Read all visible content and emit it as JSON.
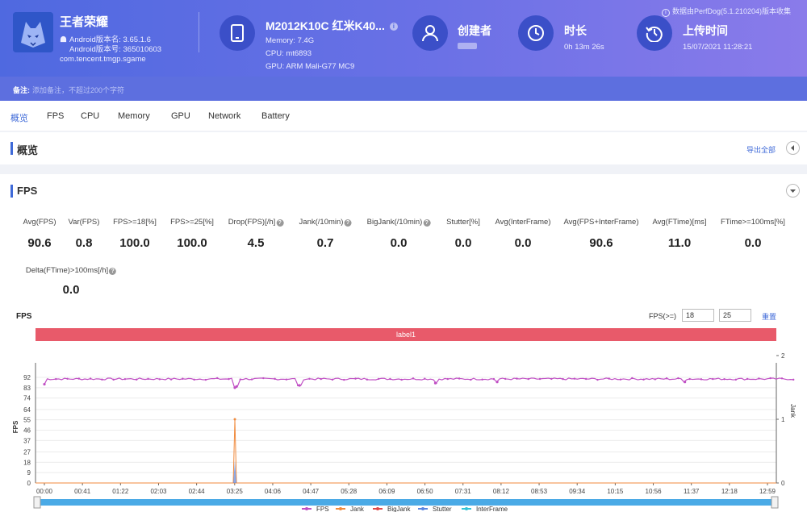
{
  "header": {
    "app_name": "王者荣耀",
    "android_version_name": "Android版本名: 3.65.1.6",
    "android_version_code": "Android版本号: 365010603",
    "package": "com.tencent.tmgp.sgame",
    "device_name": "M2012K10C 红米K40...",
    "memory": "Memory: 7.4G",
    "cpu": "CPU: mt6893",
    "gpu": "GPU: ARM Mali-G77 MC9",
    "creator_label": "创建者",
    "creator_value": "",
    "duration_label": "时长",
    "duration_value": "0h 13m 26s",
    "upload_label": "上传时间",
    "upload_value": "15/07/2021 11:28:21",
    "data_source": "数据由PerfDog(5.1.210204)版本收集"
  },
  "note": {
    "label": "备注:",
    "placeholder": "添加备注，不超过200个字符"
  },
  "tabs": [
    "概览",
    "FPS",
    "CPU",
    "Memory",
    "GPU",
    "Network",
    "Battery"
  ],
  "active_tab": "概览",
  "overview": {
    "title": "概览",
    "export_label": "导出全部"
  },
  "fps_section": {
    "title": "FPS",
    "stats": [
      {
        "label": "Avg(FPS)",
        "value": "90.6",
        "help": false
      },
      {
        "label": "Var(FPS)",
        "value": "0.8",
        "help": false
      },
      {
        "label": "FPS>=18[%]",
        "value": "100.0",
        "help": false
      },
      {
        "label": "FPS>=25[%]",
        "value": "100.0",
        "help": false
      },
      {
        "label": "Drop(FPS)[/h]",
        "value": "4.5",
        "help": true
      },
      {
        "label": "Jank(/10min)",
        "value": "0.7",
        "help": true
      },
      {
        "label": "BigJank(/10min)",
        "value": "0.0",
        "help": true
      },
      {
        "label": "Stutter[%]",
        "value": "0.0",
        "help": false
      },
      {
        "label": "Avg(InterFrame)",
        "value": "0.0",
        "help": false
      },
      {
        "label": "Avg(FPS+InterFrame)",
        "value": "90.6",
        "help": false
      },
      {
        "label": "Avg(FTime)[ms]",
        "value": "11.0",
        "help": false
      },
      {
        "label": "FTime>=100ms[%]",
        "value": "0.0",
        "help": false
      },
      {
        "label": "Delta(FTime)>100ms[/h]",
        "value": "0.0",
        "help": true
      }
    ],
    "chart_title": "FPS",
    "threshold_label": "FPS(>=)",
    "threshold_1": "18",
    "threshold_2": "25",
    "reset_label": "重置",
    "band_label": "label1"
  },
  "chart_data": {
    "type": "line",
    "title": "FPS",
    "xlabel": "",
    "ylabel": "FPS",
    "y2label": "Jank",
    "ylim": [
      0,
      92
    ],
    "y2lim": [
      0,
      2
    ],
    "yticks": [
      "0",
      "9",
      "18",
      "27",
      "37",
      "46",
      "55",
      "64",
      "74",
      "83",
      "92"
    ],
    "y2ticks": [
      "0",
      "1",
      "2"
    ],
    "xticks": [
      "00:00",
      "00:41",
      "01:22",
      "02:03",
      "02:44",
      "03:25",
      "04:06",
      "04:47",
      "05:28",
      "06:09",
      "06:50",
      "07:31",
      "08:12",
      "08:53",
      "09:34",
      "10:15",
      "10:56",
      "11:37",
      "12:18",
      "12:59"
    ],
    "grid": "horizontal",
    "legend_position": "bottom",
    "series": [
      {
        "name": "FPS",
        "color": "#c04fc4",
        "baseline": 90.6,
        "dips": [
          [
            0.0,
            86
          ],
          [
            3.42,
            83
          ],
          [
            3.45,
            84
          ],
          [
            4.58,
            85
          ],
          [
            7.02,
            87
          ],
          [
            8.13,
            88
          ],
          [
            11.5,
            88
          ]
        ]
      },
      {
        "name": "Jank",
        "color": "#f08a3c",
        "spikes": [
          [
            3.42,
            1
          ]
        ]
      },
      {
        "name": "BigJank",
        "color": "#e04848",
        "spikes": []
      },
      {
        "name": "Stutter",
        "color": "#5b86e0",
        "spikes": [
          [
            3.42,
            0.35
          ]
        ]
      },
      {
        "name": "InterFrame",
        "color": "#34c3d6",
        "spikes": []
      }
    ]
  }
}
